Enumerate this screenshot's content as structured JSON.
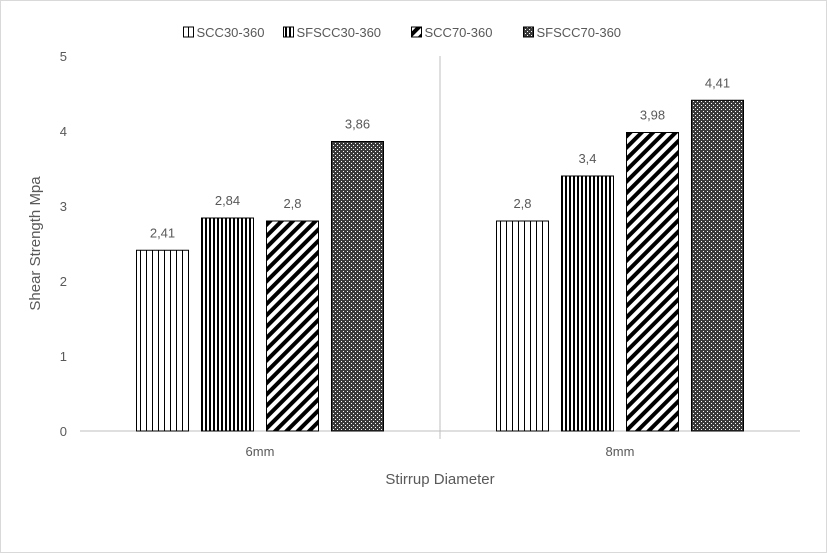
{
  "chart_data": {
    "type": "bar",
    "title": "",
    "xlabel": "Stirrup Diameter",
    "ylabel": "Shear Strength Mpa",
    "categories": [
      "6mm",
      "8mm"
    ],
    "ylim": [
      0,
      5
    ],
    "yticks": [
      "0",
      "1",
      "2",
      "3",
      "4",
      "5"
    ],
    "grid": false,
    "legend_position": "top",
    "series": [
      {
        "name": "SCC30-360",
        "pattern": "vertical-lines",
        "values": [
          2.41,
          2.8
        ],
        "labels": [
          "2,41",
          "2,8"
        ]
      },
      {
        "name": "SFSCC30-360",
        "pattern": "dense-vertical-lines",
        "values": [
          2.84,
          3.4
        ],
        "labels": [
          "2,84",
          "3,4"
        ]
      },
      {
        "name": "SCC70-360",
        "pattern": "diagonal-stripes",
        "values": [
          2.8,
          3.98
        ],
        "labels": [
          "2,8",
          "3,98"
        ]
      },
      {
        "name": "SFSCC70-360",
        "pattern": "dots",
        "values": [
          3.86,
          4.41
        ],
        "labels": [
          "3,86",
          "4,41"
        ]
      }
    ],
    "colors": {
      "pattern": "#000000",
      "axis": "#bfbfbf",
      "text": "#595959"
    }
  }
}
